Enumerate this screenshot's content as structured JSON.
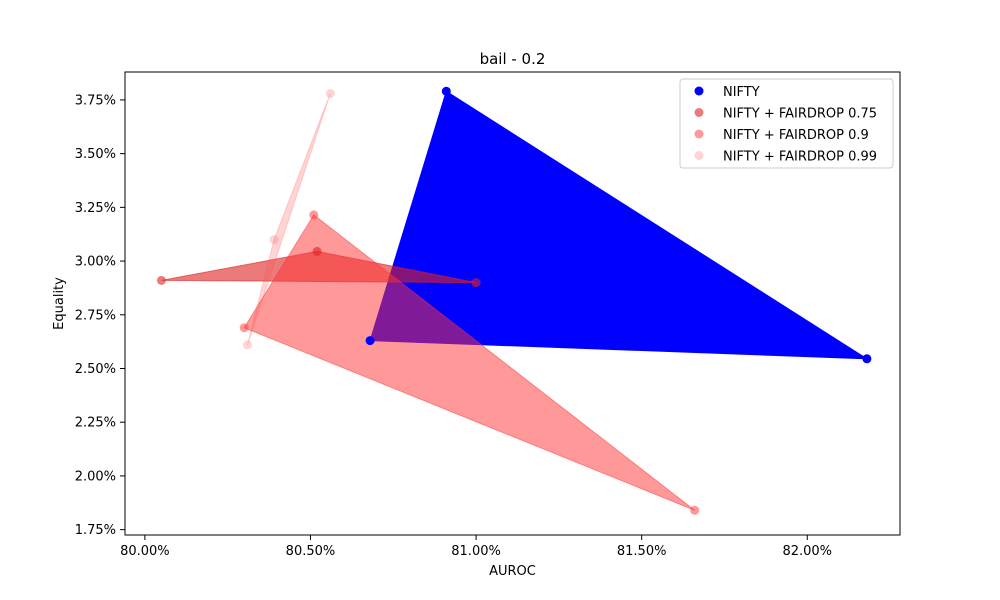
{
  "chart_data": {
    "type": "scatter",
    "title": "bail - 0.2",
    "xlabel": "AUROC",
    "ylabel": "Equality",
    "xlim": [
      0.7994,
      0.8228
    ],
    "ylim": [
      0.01725,
      0.0388
    ],
    "x_ticks": [
      {
        "value": 0.8,
        "label": "80.00%"
      },
      {
        "value": 0.805,
        "label": "80.50%"
      },
      {
        "value": 0.81,
        "label": "81.00%"
      },
      {
        "value": 0.815,
        "label": "81.50%"
      },
      {
        "value": 0.82,
        "label": "82.00%"
      }
    ],
    "y_ticks": [
      {
        "value": 0.0175,
        "label": "1.75%"
      },
      {
        "value": 0.02,
        "label": "2.00%"
      },
      {
        "value": 0.0225,
        "label": "2.25%"
      },
      {
        "value": 0.025,
        "label": "2.50%"
      },
      {
        "value": 0.0275,
        "label": "2.75%"
      },
      {
        "value": 0.03,
        "label": "3.00%"
      },
      {
        "value": 0.0325,
        "label": "3.25%"
      },
      {
        "value": 0.035,
        "label": "3.50%"
      },
      {
        "value": 0.0375,
        "label": "3.75%"
      }
    ],
    "legend_position": "top-right",
    "grid": false,
    "series": [
      {
        "name": "NIFTY",
        "color": "#0000ff",
        "point_alpha": 1.0,
        "fill_alpha": 1.0,
        "points": [
          [
            0.8091,
            0.0379
          ],
          [
            0.8218,
            0.02545
          ],
          [
            0.8068,
            0.0263
          ]
        ],
        "hull": [
          [
            0.8091,
            0.0379
          ],
          [
            0.8218,
            0.02545
          ],
          [
            0.8068,
            0.0263
          ]
        ]
      },
      {
        "name": "NIFTY + FAIRDROP 0.75",
        "color": "#dd2222",
        "point_alpha": 0.6,
        "fill_alpha": 0.6,
        "points": [
          [
            0.8005,
            0.0291
          ],
          [
            0.8052,
            0.03045
          ],
          [
            0.81,
            0.029
          ]
        ],
        "hull": [
          [
            0.8005,
            0.0291
          ],
          [
            0.8052,
            0.03045
          ],
          [
            0.81,
            0.029
          ]
        ]
      },
      {
        "name": "NIFTY + FAIRDROP 0.9",
        "color": "#ff3333",
        "point_alpha": 0.5,
        "fill_alpha": 0.5,
        "points": [
          [
            0.8051,
            0.03215
          ],
          [
            0.803,
            0.0269
          ],
          [
            0.8166,
            0.0184
          ]
        ],
        "hull": [
          [
            0.8051,
            0.03215
          ],
          [
            0.803,
            0.0269
          ],
          [
            0.8166,
            0.0184
          ]
        ]
      },
      {
        "name": "NIFTY + FAIRDROP 0.99",
        "color": "#ff5555",
        "point_alpha": 0.25,
        "fill_alpha": 0.25,
        "points": [
          [
            0.8056,
            0.0378
          ],
          [
            0.8039,
            0.031
          ],
          [
            0.8031,
            0.0261
          ]
        ],
        "hull": [
          [
            0.8056,
            0.0378
          ],
          [
            0.8039,
            0.031
          ],
          [
            0.8031,
            0.0261
          ]
        ]
      }
    ]
  }
}
